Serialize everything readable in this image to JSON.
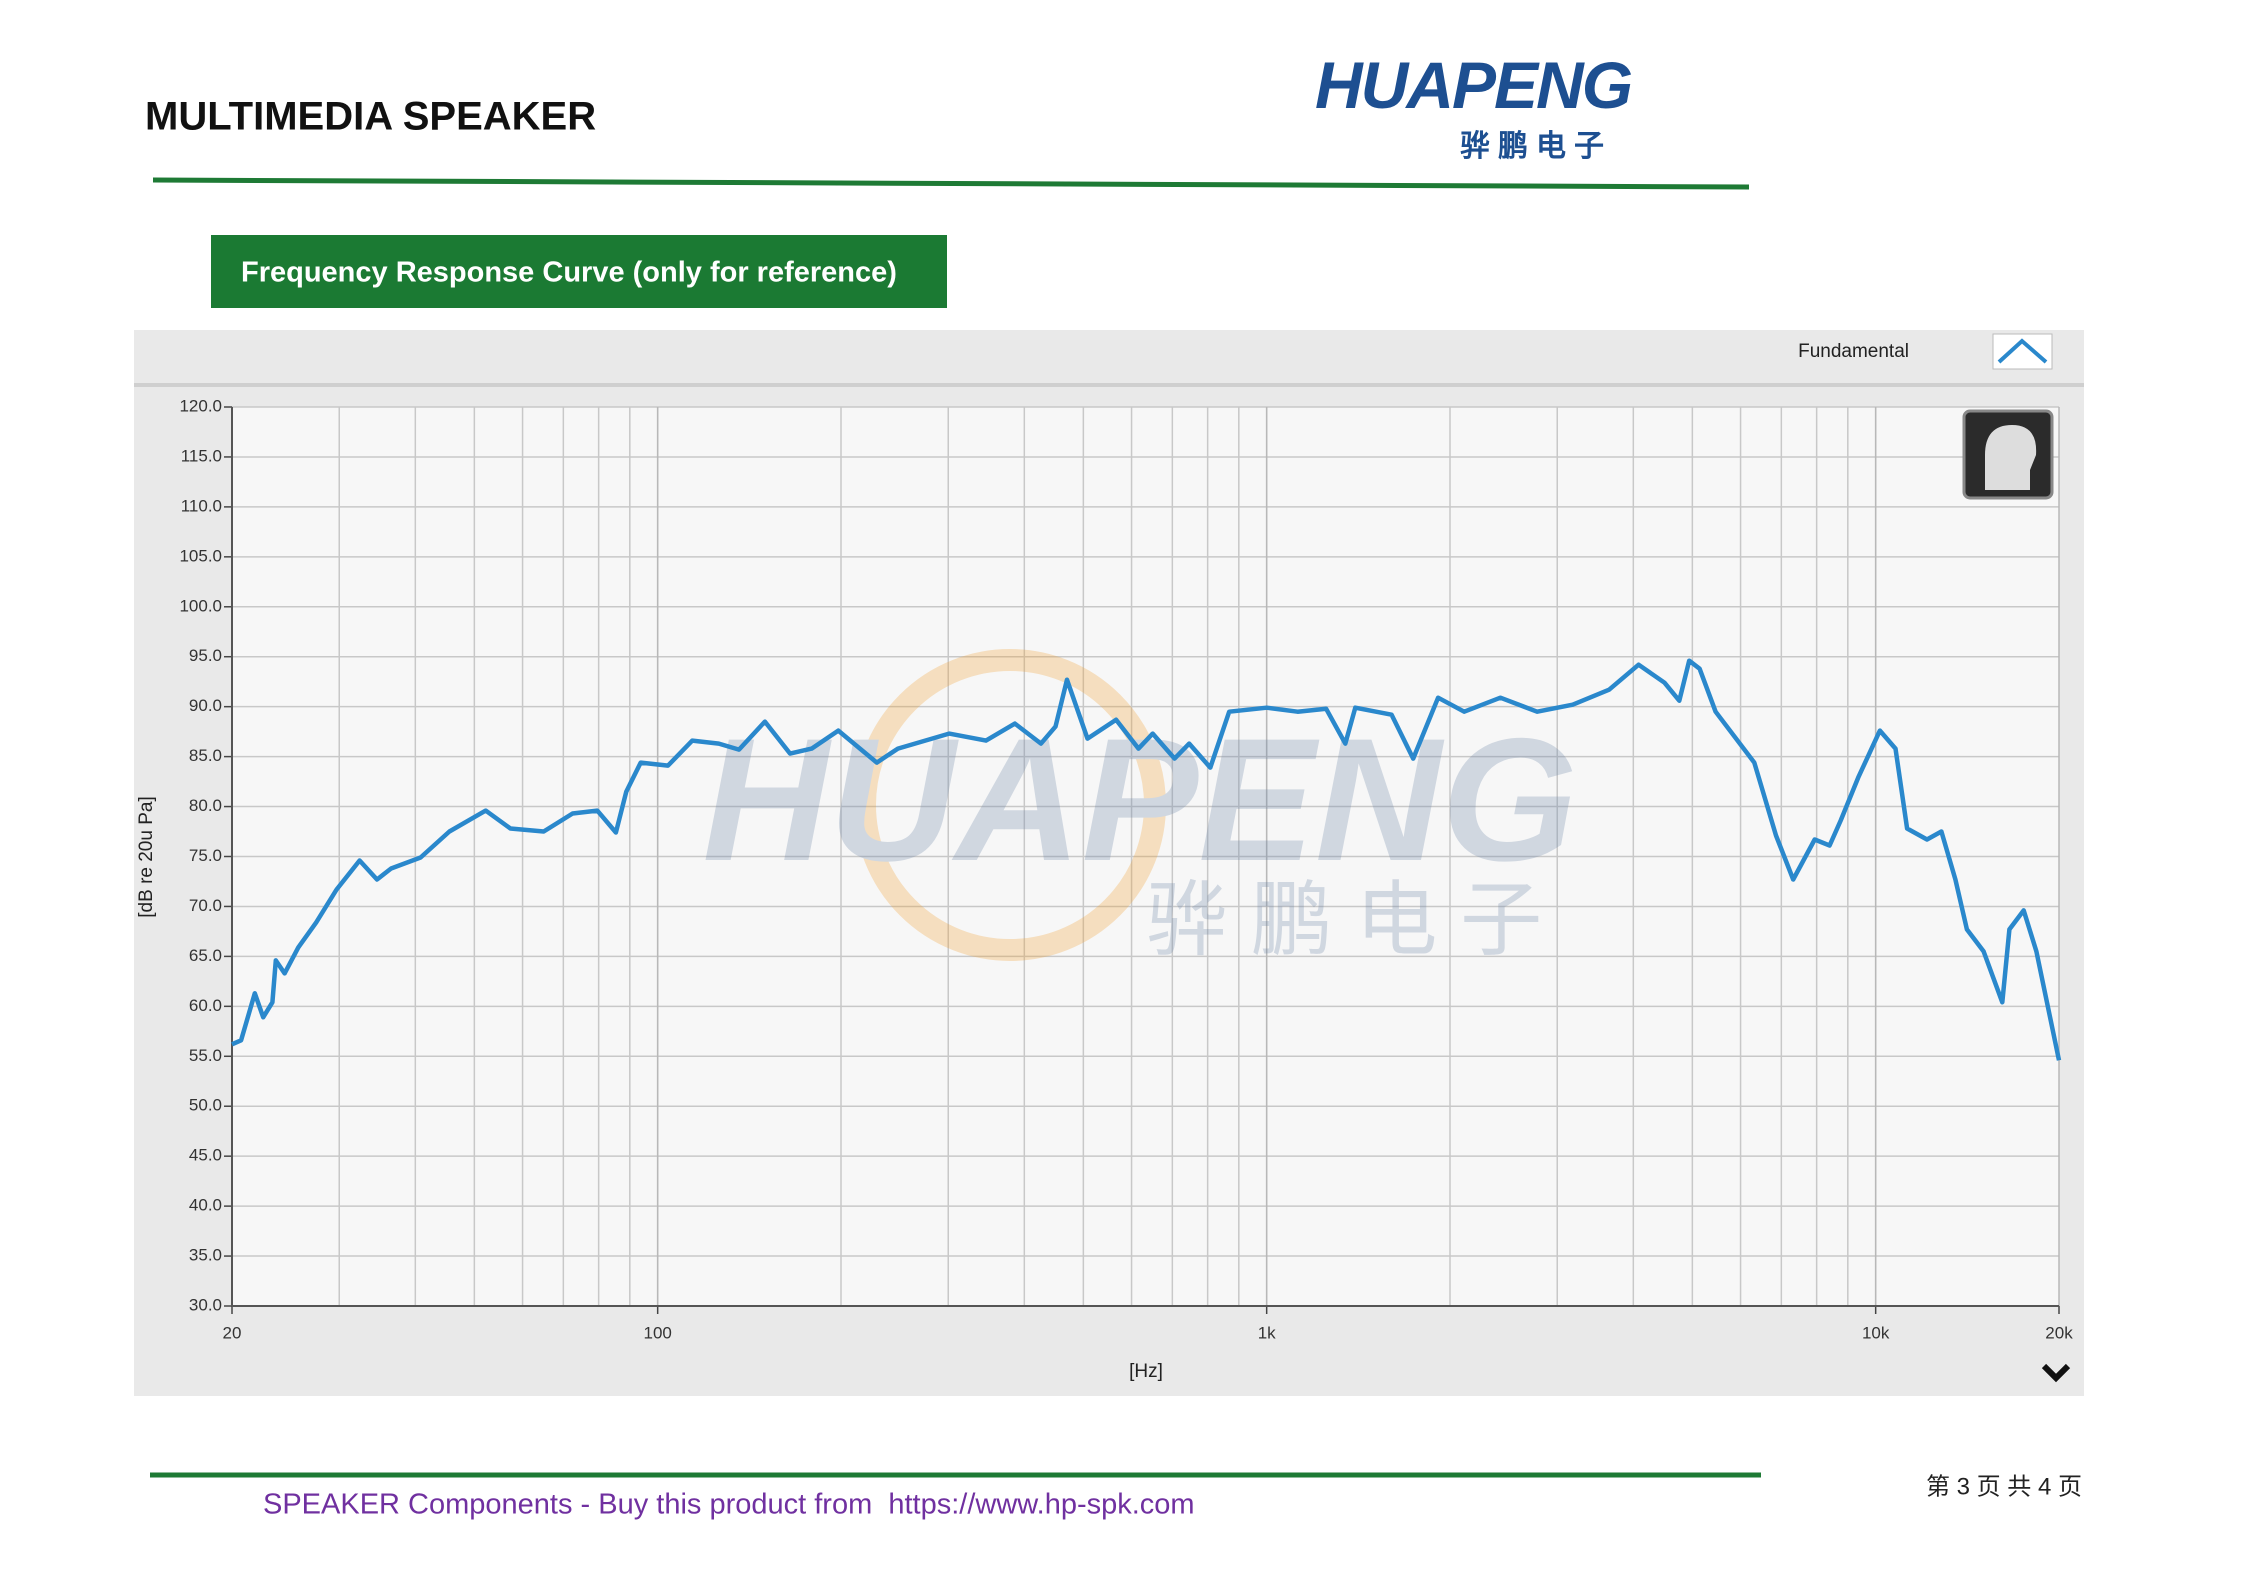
{
  "header": {
    "title": "MULTIMEDIA SPEAKER",
    "logo": {
      "text": "HUAPENG",
      "subtitle": "骅鹏电子"
    }
  },
  "section_title": "Frequency Response Curve (only for reference)",
  "chart_data": {
    "type": "line",
    "xscale": "log",
    "grid": true,
    "legend": "top-right",
    "xlabel": "[Hz]",
    "ylabel": "[dB re 20u Pa]",
    "watermark": {
      "text": "HUAPENG",
      "subtitle": "骅 鹏 电 子"
    },
    "xlim": [
      20,
      20000
    ],
    "ylim": [
      30,
      120
    ],
    "xticks": [
      20,
      100,
      {
        "value": 1000,
        "label": "1k"
      },
      {
        "value": 10000,
        "label": "10k"
      },
      {
        "value": 20000,
        "label": "20k"
      }
    ],
    "yticks": [
      {
        "value": 30,
        "label": "30.0"
      },
      {
        "value": 35,
        "label": "35.0"
      },
      {
        "value": 40,
        "label": "40.0"
      },
      {
        "value": 45,
        "label": "45.0"
      },
      {
        "value": 50,
        "label": "50.0"
      },
      {
        "value": 55,
        "label": "55.0"
      },
      {
        "value": 60,
        "label": "60.0"
      },
      {
        "value": 65,
        "label": "65.0"
      },
      {
        "value": 70,
        "label": "70.0"
      },
      {
        "value": 75,
        "label": "75.0"
      },
      {
        "value": 80,
        "label": "80.0"
      },
      {
        "value": 85,
        "label": "85.0"
      },
      {
        "value": 90,
        "label": "90.0"
      },
      {
        "value": 95,
        "label": "95.0"
      },
      {
        "value": 100,
        "label": "100.0"
      },
      {
        "value": 105,
        "label": "105.0"
      },
      {
        "value": 110,
        "label": "110.0"
      },
      {
        "value": 115,
        "label": "115.0"
      },
      {
        "value": 120,
        "label": "120.0"
      }
    ],
    "x": [
      20,
      20.7,
      21.8,
      22.5,
      23.3,
      23.6,
      24.4,
      25.7,
      27.5,
      29.7,
      32.4,
      34.6,
      36.5,
      40.8,
      45.5,
      52.2,
      57.3,
      65,
      72.5,
      79.6,
      85.4,
      88.8,
      93.8,
      104,
      114,
      126,
      136,
      150,
      165,
      179,
      198,
      229,
      248,
      301,
      346,
      386,
      426,
      450,
      470,
      508,
      566,
      616,
      650,
      706,
      746,
      808,
      868,
      1000,
      1124,
      1252,
      1346,
      1398,
      1604,
      1740,
      1912,
      2110,
      2420,
      2780,
      3180,
      3650,
      4080,
      4500,
      4760,
      4940,
      5140,
      5460,
      6320,
      6860,
      7320,
      7940,
      8400,
      8760,
      9360,
      10160,
      10780,
      11260,
      12140,
      12820,
      13520,
      14120,
      15040,
      16140,
      16580,
      17500,
      18360,
      20000
    ],
    "series": [
      {
        "name": "Fundamental",
        "color": "#2a88cc",
        "values": [
          56.2,
          56.6,
          61.3,
          58.9,
          60.4,
          64.6,
          63.3,
          65.9,
          68.4,
          71.7,
          74.6,
          72.7,
          73.8,
          74.9,
          77.5,
          79.6,
          77.8,
          77.5,
          79.3,
          79.6,
          77.4,
          81.5,
          84.4,
          84.1,
          86.6,
          86.3,
          85.7,
          88.5,
          85.3,
          85.8,
          87.6,
          84.4,
          85.8,
          87.3,
          86.6,
          88.3,
          86.3,
          88.0,
          92.7,
          86.8,
          88.7,
          85.8,
          87.3,
          84.8,
          86.3,
          83.9,
          89.5,
          89.9,
          89.5,
          89.8,
          86.3,
          89.9,
          89.2,
          84.8,
          90.9,
          89.5,
          90.9,
          89.5,
          90.2,
          91.7,
          94.2,
          92.4,
          90.6,
          94.6,
          93.8,
          89.5,
          84.4,
          77.1,
          72.7,
          76.7,
          76.1,
          78.6,
          82.9,
          87.6,
          85.8,
          77.8,
          76.7,
          77.5,
          72.7,
          67.7,
          65.5,
          60.4,
          67.7,
          69.6,
          65.5,
          54.6
        ]
      }
    ]
  },
  "footer": {
    "text": "SPEAKER Components - Buy this product from  https://www.hp-spk.com",
    "page": "第 3 页 共 4 页"
  }
}
